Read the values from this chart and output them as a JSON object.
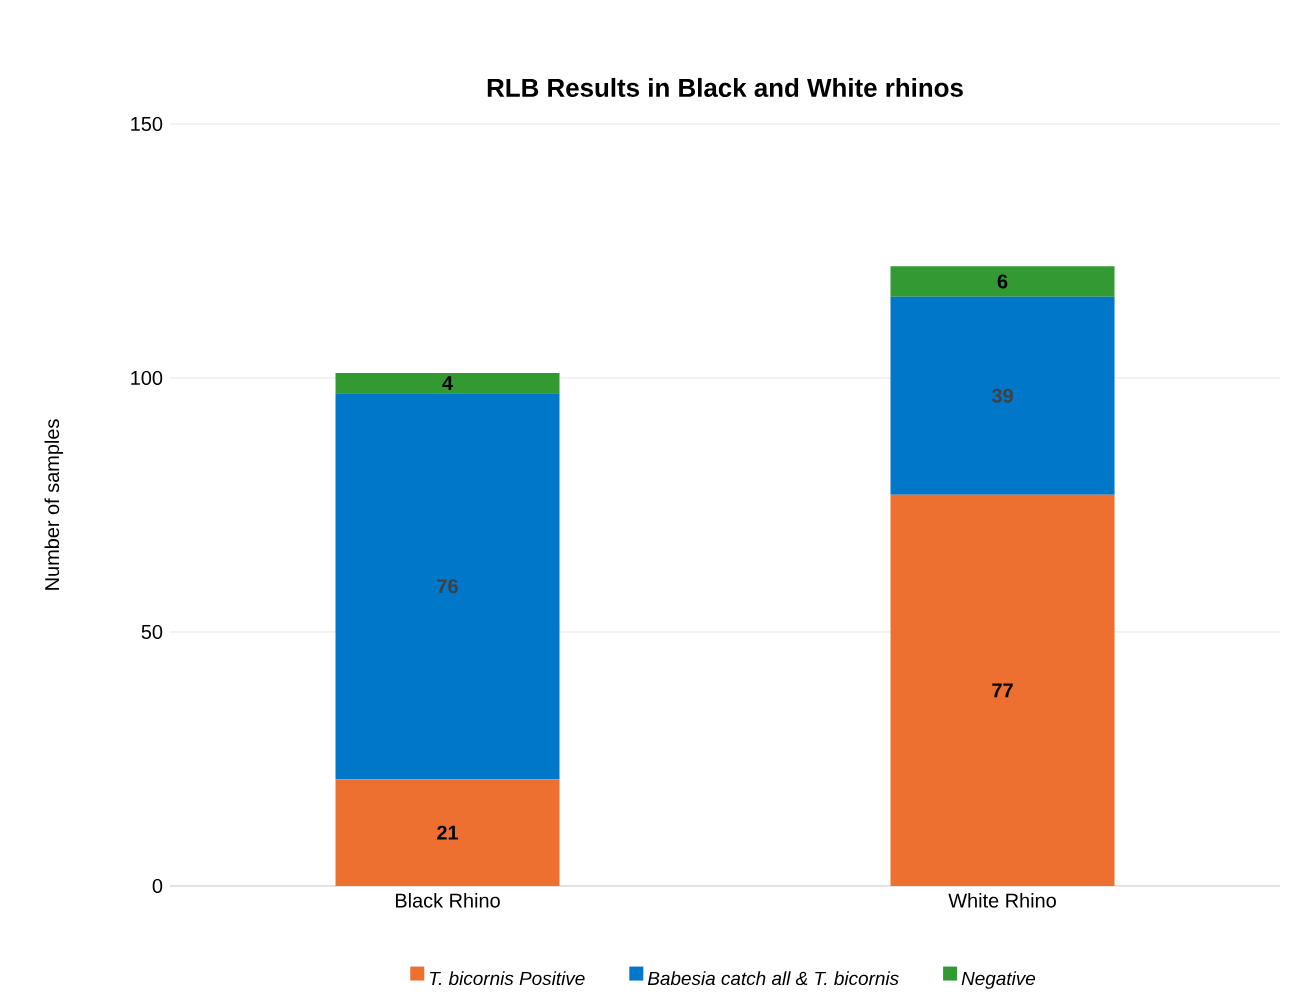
{
  "chart_data": {
    "type": "bar",
    "stacked": true,
    "title": "RLB Results in Black and White rhinos",
    "ylabel": "Number of samples",
    "categories": [
      "Black Rhino",
      "White Rhino"
    ],
    "series": [
      {
        "name": "T. bicornis Positive",
        "color": "#ed7030",
        "values": [
          21,
          77
        ]
      },
      {
        "name": "Babesia catch all & T. bicornis",
        "color": "#0077c8",
        "values": [
          76,
          39
        ]
      },
      {
        "name": "Negative",
        "color": "#339933",
        "values": [
          4,
          6
        ]
      }
    ],
    "ylim": [
      0,
      150
    ],
    "yticks": [
      0,
      50,
      100,
      150
    ],
    "grid": "y",
    "legend": "bottom",
    "data_labels": true
  }
}
